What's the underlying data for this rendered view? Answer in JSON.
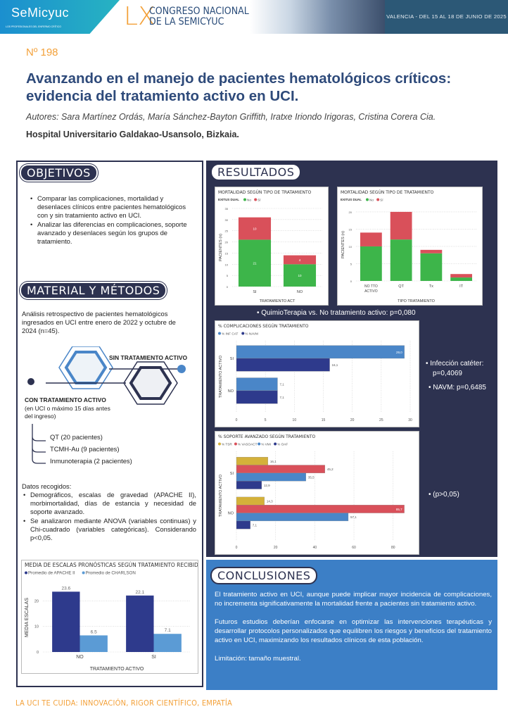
{
  "header": {
    "logo_name": "SeMicyuc",
    "logo_tagline": "LOS PROFESIONALES DEL ENFERMO CRÍTICO",
    "congress_roman": "LX",
    "congress_line1": "CONGRESO NACIONAL",
    "congress_line2": "DE LA SEMICYUC",
    "venue": "VALENCIA - DEL 15 AL 18 DE JUNIO DE 2025"
  },
  "poster": {
    "number": "Nº 198",
    "title": "Avanzando en el manejo de pacientes hematológicos críticos: evidencia del tratamiento activo en UCI.",
    "authors": "Autores: Sara Martínez Ordás, María Sánchez-Bayton Griffith, Iratxe Iriondo Irigoras, Cristina Corera Cia.",
    "hospital": "Hospital Universitario Galdakao-Usansolo, Bizkaia."
  },
  "objetivos": {
    "heading": "OBJETIVOS",
    "items": [
      "Comparar las complicaciones, mortalidad y desenlaces clínicos entre pacientes hematológicos con y sin tratamiento activo en UCI.",
      "Analizar las diferencias en complicaciones, soporte avanzado y desenlaces según los grupos de tratamiento."
    ]
  },
  "metodos": {
    "heading": "MATERIAL Y MÉTODOS",
    "intro": "Análisis retrospectivo de pacientes hematológicos ingresados en UCI entre enero de 2022 y octubre de 2024 (n=45).",
    "sin_tratamiento": "SIN TRATAMIENTO  ACTIVO",
    "con_tratamiento": "CON TRATAMIENTO  ACTIVO",
    "con_tratamiento_note": "(en UCI o máximo 15 días antes del ingreso)",
    "subgroups": [
      "QT (20 pacientes)",
      "TCMH-Au (9 pacientes)",
      "Inmunoterapia (2 pacientes)"
    ],
    "datos_heading": "Datos recogidos:",
    "datos_items": [
      "Demográficos, escalas de gravedad (APACHE II), morbimortalidad, días de estancia y necesidad de soporte avanzado.",
      "Se analizaron mediante ANOVA (variables continuas) y Chi-cuadrado (variables categóricas). Considerando p<0,05."
    ]
  },
  "resultados": {
    "heading": "RESULTADOS",
    "mortality_note": "QuimioTerapia vs. No tratamiento activo: p=0,080",
    "complications_notes": [
      "Infección catéter: p=0,4069",
      "NAVM: p=0,6485"
    ],
    "support_note": "(p>0,05)"
  },
  "conclusiones": {
    "heading": "CONCLUSIONES",
    "paragraphs": [
      "El tratamiento activo en UCI, aunque puede implicar mayor incidencia de complicaciones, no incrementa significativamente la mortalidad frente a pacientes sin tratamiento activo.",
      "Futuros estudios deberían enfocarse en optimizar las intervenciones terapéuticas y desarrollar protocolos personalizados que equilibren los riesgos y beneficios del tratamiento activo en UCI, maximizando los resultados clínicos de esta población.",
      "Limitación: tamaño muestral."
    ]
  },
  "footer": "LA UCI TE CUIDA: INNOVACIÓN, RIGOR CIENTÍFICO, EMPATÍA",
  "colors": {
    "navy": "#2d3250",
    "accent": "#f3a13a",
    "title": "#2e4a7a",
    "conclusion_bg": "#3c7fc6"
  },
  "chart_data": [
    {
      "type": "bar",
      "stacked": true,
      "orientation": "vertical",
      "title": "MORTALIDAD SEGÚN TIPO DE TRATAMIENTO",
      "legend_title": "EXITUS DUAL",
      "xlabel": "TRATAMIENTO ACT",
      "ylabel": "PACIENTES (n)",
      "categories": [
        "SI",
        "NO"
      ],
      "ylim": [
        0,
        35
      ],
      "ticks": [
        0,
        5,
        10,
        15,
        20,
        25,
        30,
        35
      ],
      "grid": true,
      "legend": "top-left",
      "series": [
        {
          "name": "No",
          "color": "#3db54a",
          "values": [
            21,
            10
          ],
          "labels": [
            "21",
            "10"
          ]
        },
        {
          "name": "Sí",
          "color": "#d9505a",
          "values": [
            10,
            4
          ],
          "labels": [
            "10",
            "4"
          ]
        }
      ]
    },
    {
      "type": "bar",
      "stacked": true,
      "orientation": "vertical",
      "title": "MORTALIDAD SEGÚN TIPO DE TRATAMIENTO",
      "legend_title": "EXITUS DUAL",
      "xlabel": "TIPO TRATAMIENTO",
      "ylabel": "PACIENTES (n)",
      "categories": [
        "NO TTO ACTIVO",
        "QT",
        "Tx",
        "IT"
      ],
      "ylim": [
        0,
        21
      ],
      "ticks": [
        0,
        5,
        10,
        15,
        20
      ],
      "grid": true,
      "legend": "top-left",
      "series": [
        {
          "name": "No",
          "color": "#3db54a",
          "values": [
            10,
            12,
            8,
            1
          ]
        },
        {
          "name": "Sí",
          "color": "#d9505a",
          "values": [
            4,
            8,
            1,
            1
          ]
        }
      ]
    },
    {
      "type": "bar",
      "stacked": false,
      "orientation": "horizontal",
      "title": "% COMPLICACIONES SEGÚN TRATAMIENTO",
      "xlabel": "",
      "ylabel": "TRATAMIENTO ACTIVO",
      "categories": [
        "SI",
        "NO"
      ],
      "xlim": [
        0,
        30
      ],
      "ticks": [
        0,
        5,
        10,
        15,
        20,
        25,
        30
      ],
      "grid": true,
      "legend": "top-left",
      "series": [
        {
          "name": "% INF CAT",
          "color": "#4a86c8",
          "values": [
            29.0,
            7.1
          ],
          "labels": [
            "29,0",
            "7,1"
          ]
        },
        {
          "name": "% NAVM",
          "color": "#2e3a8c",
          "values": [
            16.1,
            7.1
          ],
          "labels": [
            "16,1",
            "7,1"
          ]
        }
      ]
    },
    {
      "type": "bar",
      "stacked": false,
      "orientation": "horizontal",
      "title": "% SOPORTE AVANZADO SEGÚN TRATAMIENTO",
      "xlabel": "",
      "ylabel": "TRATAMIENTO ACTIVO",
      "categories": [
        "SI",
        "NO"
      ],
      "xlim": [
        0,
        88
      ],
      "ticks": [
        0,
        20,
        40,
        60,
        80
      ],
      "grid": true,
      "legend": "top-left",
      "series": [
        {
          "name": "% TSR",
          "color": "#d4b13a",
          "values": [
            16.1,
            14.3
          ],
          "labels": [
            "16,1",
            "14,3"
          ]
        },
        {
          "name": "% VASOACT",
          "color": "#d9505a",
          "values": [
            45.2,
            85.7
          ],
          "labels": [
            "45,2",
            "85,7"
          ]
        },
        {
          "name": "% VMI",
          "color": "#4a86c8",
          "values": [
            35.5,
            57.1
          ],
          "labels": [
            "35,5",
            "57,1"
          ]
        },
        {
          "name": "% OAF",
          "color": "#2e3a8c",
          "values": [
            12.9,
            7.1
          ],
          "labels": [
            "12,9",
            "7,1"
          ]
        }
      ]
    },
    {
      "type": "bar",
      "stacked": false,
      "orientation": "vertical",
      "title": "MEDIA DE ESCALAS PRONÓSTICAS SEGÚN TRATAMIENTO RECIBIDO",
      "xlabel": "TRATAMIENTO ACTIVO",
      "ylabel": "MEDIA ESCALAS",
      "categories": [
        "NO",
        "SI"
      ],
      "ylim": [
        0,
        27
      ],
      "ticks": [
        0,
        10,
        20
      ],
      "grid": true,
      "legend": "top-left",
      "series": [
        {
          "name": "Promedio de APACHE II",
          "color": "#2e3a8c",
          "values": [
            23.6,
            22.1
          ],
          "labels": [
            "23.6",
            "22.1"
          ]
        },
        {
          "name": "Promedio de CHARLSON",
          "color": "#5b9bd5",
          "values": [
            6.5,
            7.1
          ],
          "labels": [
            "6.5",
            "7.1"
          ]
        }
      ]
    }
  ]
}
